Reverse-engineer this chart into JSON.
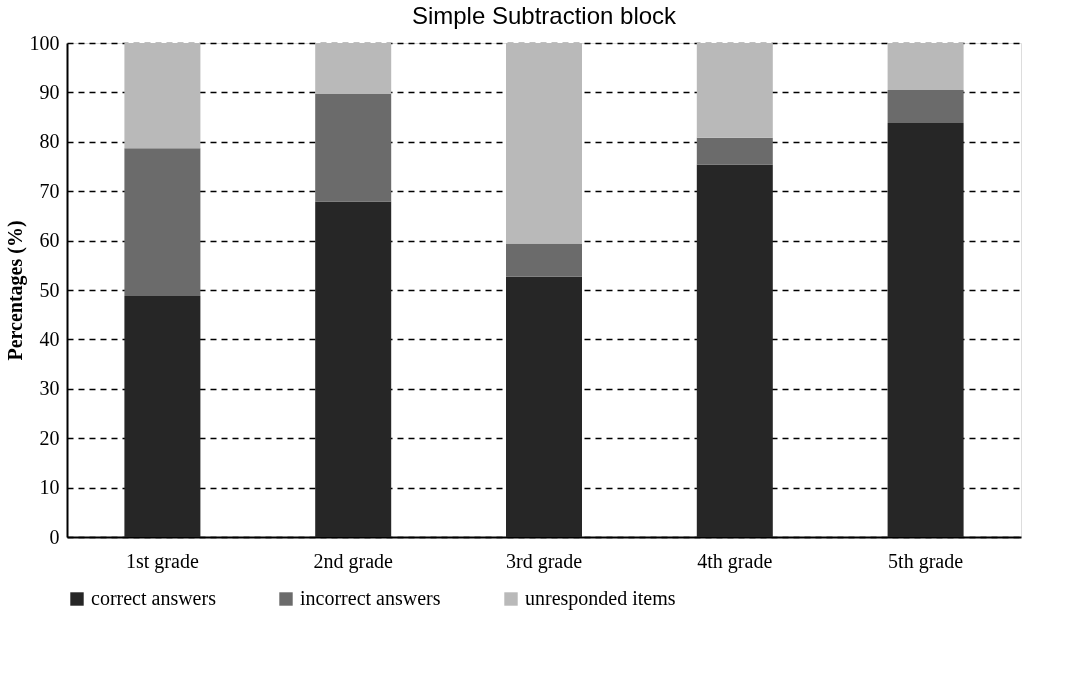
{
  "chart_data": {
    "type": "bar",
    "title": "Simple Subtraction block",
    "ylabel": "Percentages (%)",
    "categories": [
      "1st grade",
      "2nd grade",
      "3rd grade",
      "4th grade",
      "5th grade"
    ],
    "stacked": true,
    "series": [
      {
        "name": "correct answers",
        "color": "#262626",
        "values": [
          48.8,
          67.9,
          52.7,
          75.4,
          83.8
        ]
      },
      {
        "name": "incorrect answers",
        "color": "#6b6b6b",
        "values": [
          29.9,
          21.8,
          6.7,
          5.4,
          6.7
        ]
      },
      {
        "name": "unresponded items",
        "color": "#b9b9b9",
        "values": [
          21.3,
          10.3,
          40.6,
          19.2,
          9.5
        ]
      }
    ],
    "ylim": [
      0,
      100
    ],
    "yticks": [
      0,
      10,
      20,
      30,
      40,
      50,
      60,
      70,
      80,
      90,
      100
    ],
    "grid": "y",
    "legend": "bottom"
  }
}
